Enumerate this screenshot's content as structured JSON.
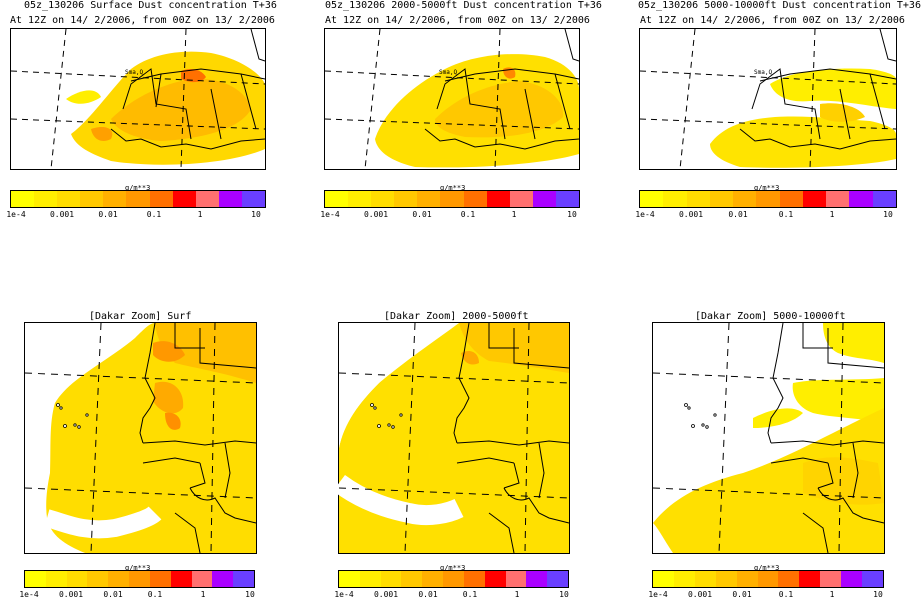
{
  "panels": [
    {
      "line1": "05z_130206 Surface Dust concentration T+36",
      "line2": "At 12Z on 14/ 2/2006, from 00Z on 13/ 2/2006"
    },
    {
      "line1": "05z_130206 2000-5000ft Dust concentration T+36",
      "line2": "At 12Z on 14/ 2/2006, from 00Z on 13/ 2/2006"
    },
    {
      "line1": "05z_130206 5000-10000ft Dust concentration T+36",
      "line2": "At 12Z on 14/ 2/2006, from 00Z on 13/ 2/2006"
    }
  ],
  "zooms": [
    {
      "title": "[Dakar Zoom] Surf"
    },
    {
      "title": "[Dakar Zoom] 2000-5000ft"
    },
    {
      "title": "[Dakar Zoom] 5000-10000ft"
    }
  ],
  "colorbar": {
    "unit": "g/m**3",
    "ticks": [
      "1e-4",
      "0.001",
      "0.01",
      "0.1",
      "1",
      "10"
    ],
    "colors": [
      "#ffff00",
      "#ffee00",
      "#ffdd00",
      "#ffc800",
      "#ffb000",
      "#ff9800",
      "#ff7000",
      "#ff0000",
      "#ff7070",
      "#aa00ff",
      "#6a3fff"
    ]
  },
  "town_label": "Sma,Q"
}
